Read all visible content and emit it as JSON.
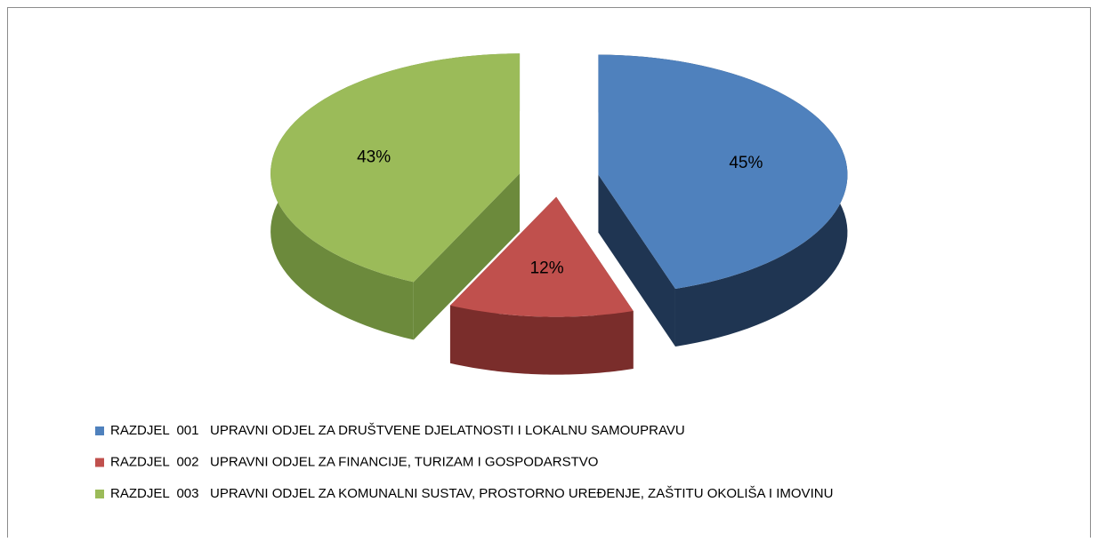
{
  "chart_data": {
    "type": "pie",
    "categories": [
      "RAZDJEL  001   UPRAVNI ODJEL ZA DRUŠTVENE DJELATNOSTI I LOKALNU SAMOUPRAVU",
      "RAZDJEL  002   UPRAVNI ODJEL ZA FINANCIJE, TURIZAM I GOSPODARSTVO",
      "RAZDJEL  003   UPRAVNI ODJEL ZA KOMUNALNI SUSTAV, PROSTORNO UREĐENJE, ZAŠTITU OKOLIŠA I IMOVINU"
    ],
    "values": [
      45,
      12,
      43
    ],
    "value_labels": [
      "45%",
      "12%",
      "43%"
    ],
    "colors": [
      "#4f81bd",
      "#c0504d",
      "#9bbb59"
    ],
    "side_colors": [
      "#1f3552",
      "#7a2d2b",
      "#6c8a3c"
    ],
    "legend": "bottom"
  }
}
